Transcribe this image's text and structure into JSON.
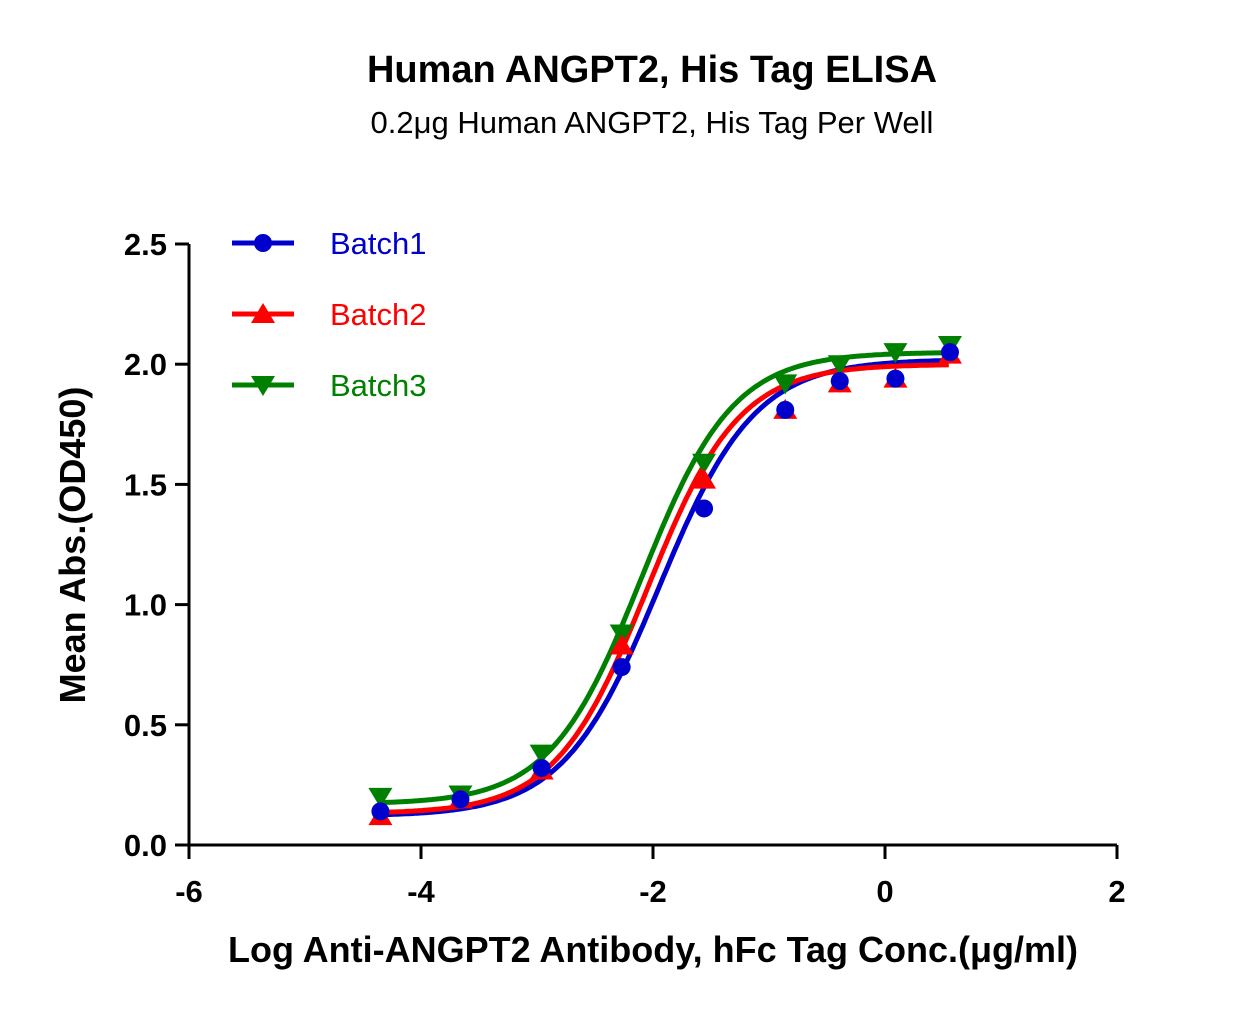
{
  "chart_data": {
    "type": "line",
    "title": "Human ANGPT2, His Tag ELISA",
    "subtitle": "0.2μg Human ANGPT2, His Tag Per Well",
    "xlabel": "Log Anti-ANGPT2 Antibody, hFc Tag Conc.(μg/ml)",
    "ylabel": "Mean Abs.(OD450)",
    "xlim": [
      -6,
      2
    ],
    "ylim": [
      0,
      2.5
    ],
    "xticks": [
      "-6",
      "-4",
      "-2",
      "0",
      "2"
    ],
    "yticks": [
      "0.0",
      "0.5",
      "1.0",
      "1.5",
      "2.0",
      "2.5"
    ],
    "grid": false,
    "legend_position": "top-left",
    "x": [
      -4.35,
      -3.66,
      -2.96,
      -2.27,
      -1.56,
      -0.86,
      -0.39,
      0.09,
      0.56
    ],
    "series": [
      {
        "name": "Batch1",
        "color": "#0000CC",
        "marker": "circle",
        "values": [
          0.14,
          0.19,
          0.32,
          0.74,
          1.4,
          1.81,
          1.93,
          1.94,
          2.05
        ],
        "fit": {
          "bottom": 0.12,
          "top": 2.02,
          "logEC50": -1.95,
          "hill": 1.05
        }
      },
      {
        "name": "Batch2",
        "color": "#FF0000",
        "marker": "triangle-up",
        "values": [
          0.12,
          0.19,
          0.31,
          0.83,
          1.52,
          1.81,
          1.92,
          1.94,
          2.04
        ],
        "fit": {
          "bottom": 0.13,
          "top": 2.0,
          "logEC50": -2.05,
          "hill": 1.1
        }
      },
      {
        "name": "Batch3",
        "color": "#008000",
        "marker": "triangle-down",
        "values": [
          0.2,
          0.21,
          0.38,
          0.88,
          1.59,
          1.92,
          2.0,
          2.05,
          2.08
        ],
        "fit": {
          "bottom": 0.17,
          "top": 2.05,
          "logEC50": -2.1,
          "hill": 1.1
        }
      }
    ]
  }
}
